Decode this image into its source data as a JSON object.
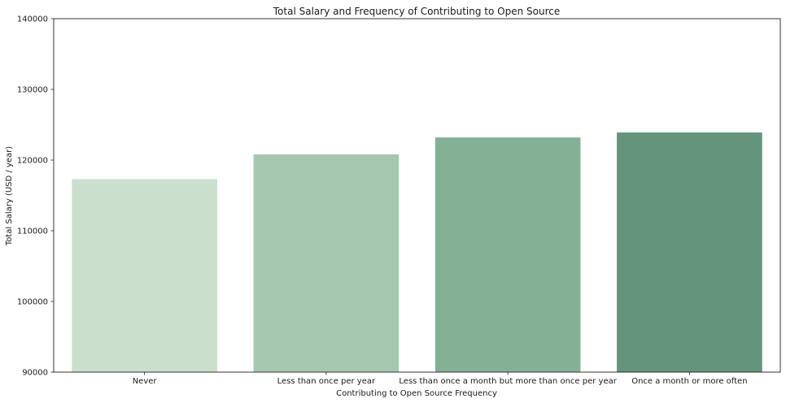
{
  "chart_data": {
    "type": "bar",
    "title": "Total Salary and Frequency of Contributing to Open Source",
    "xlabel": "Contributing to Open Source Frequency",
    "ylabel": "Total Salary (USD / year)",
    "categories": [
      "Never",
      "Less than once per year",
      "Less than once a month but more than once per year",
      "Once a month or more often"
    ],
    "values": [
      117300,
      120800,
      123200,
      123900
    ],
    "colors": [
      "#cae0cd",
      "#a5c7af",
      "#84b195",
      "#62957c"
    ],
    "ylim": [
      90000,
      140000
    ],
    "yticks": [
      90000,
      100000,
      110000,
      120000,
      130000,
      140000
    ],
    "grid": false,
    "legend": false
  }
}
